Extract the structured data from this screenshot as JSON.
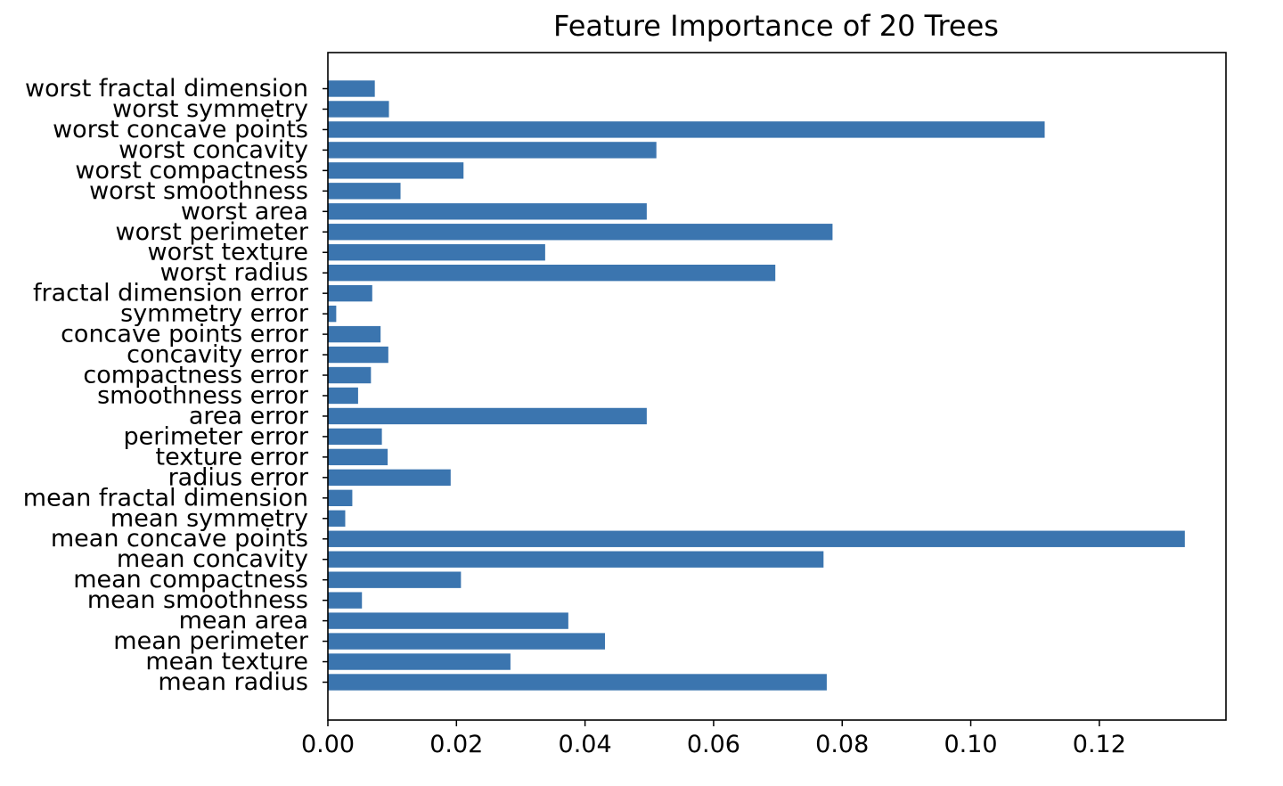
{
  "chart_data": {
    "type": "bar",
    "orientation": "horizontal",
    "title": "Feature Importance of 20 Trees",
    "xlabel": "",
    "ylabel": "",
    "xlim": [
      0,
      0.1397
    ],
    "xticks": [
      "0.00",
      "0.02",
      "0.04",
      "0.06",
      "0.08",
      "0.10",
      "0.12"
    ],
    "xtick_values": [
      0,
      0.02,
      0.04,
      0.06,
      0.08,
      0.1,
      0.12
    ],
    "grid": false,
    "bar_color": "#3b75af",
    "categories": [
      "mean radius",
      "mean texture",
      "mean perimeter",
      "mean area",
      "mean smoothness",
      "mean compactness",
      "mean concavity",
      "mean concave points",
      "mean symmetry",
      "mean fractal dimension",
      "radius error",
      "texture error",
      "perimeter error",
      "area error",
      "smoothness error",
      "compactness error",
      "concavity error",
      "concave points error",
      "symmetry error",
      "fractal dimension error",
      "worst radius",
      "worst texture",
      "worst perimeter",
      "worst area",
      "worst smoothness",
      "worst compactness",
      "worst concavity",
      "worst concave points",
      "worst symmetry",
      "worst fractal dimension"
    ],
    "values": [
      0.0776,
      0.0284,
      0.0431,
      0.0374,
      0.0053,
      0.0207,
      0.0771,
      0.1333,
      0.0027,
      0.0038,
      0.0191,
      0.0093,
      0.0084,
      0.0496,
      0.0047,
      0.0067,
      0.0094,
      0.0082,
      0.0013,
      0.0069,
      0.0696,
      0.0338,
      0.0785,
      0.0496,
      0.0113,
      0.0211,
      0.0511,
      0.1115,
      0.0095,
      0.0073
    ]
  }
}
